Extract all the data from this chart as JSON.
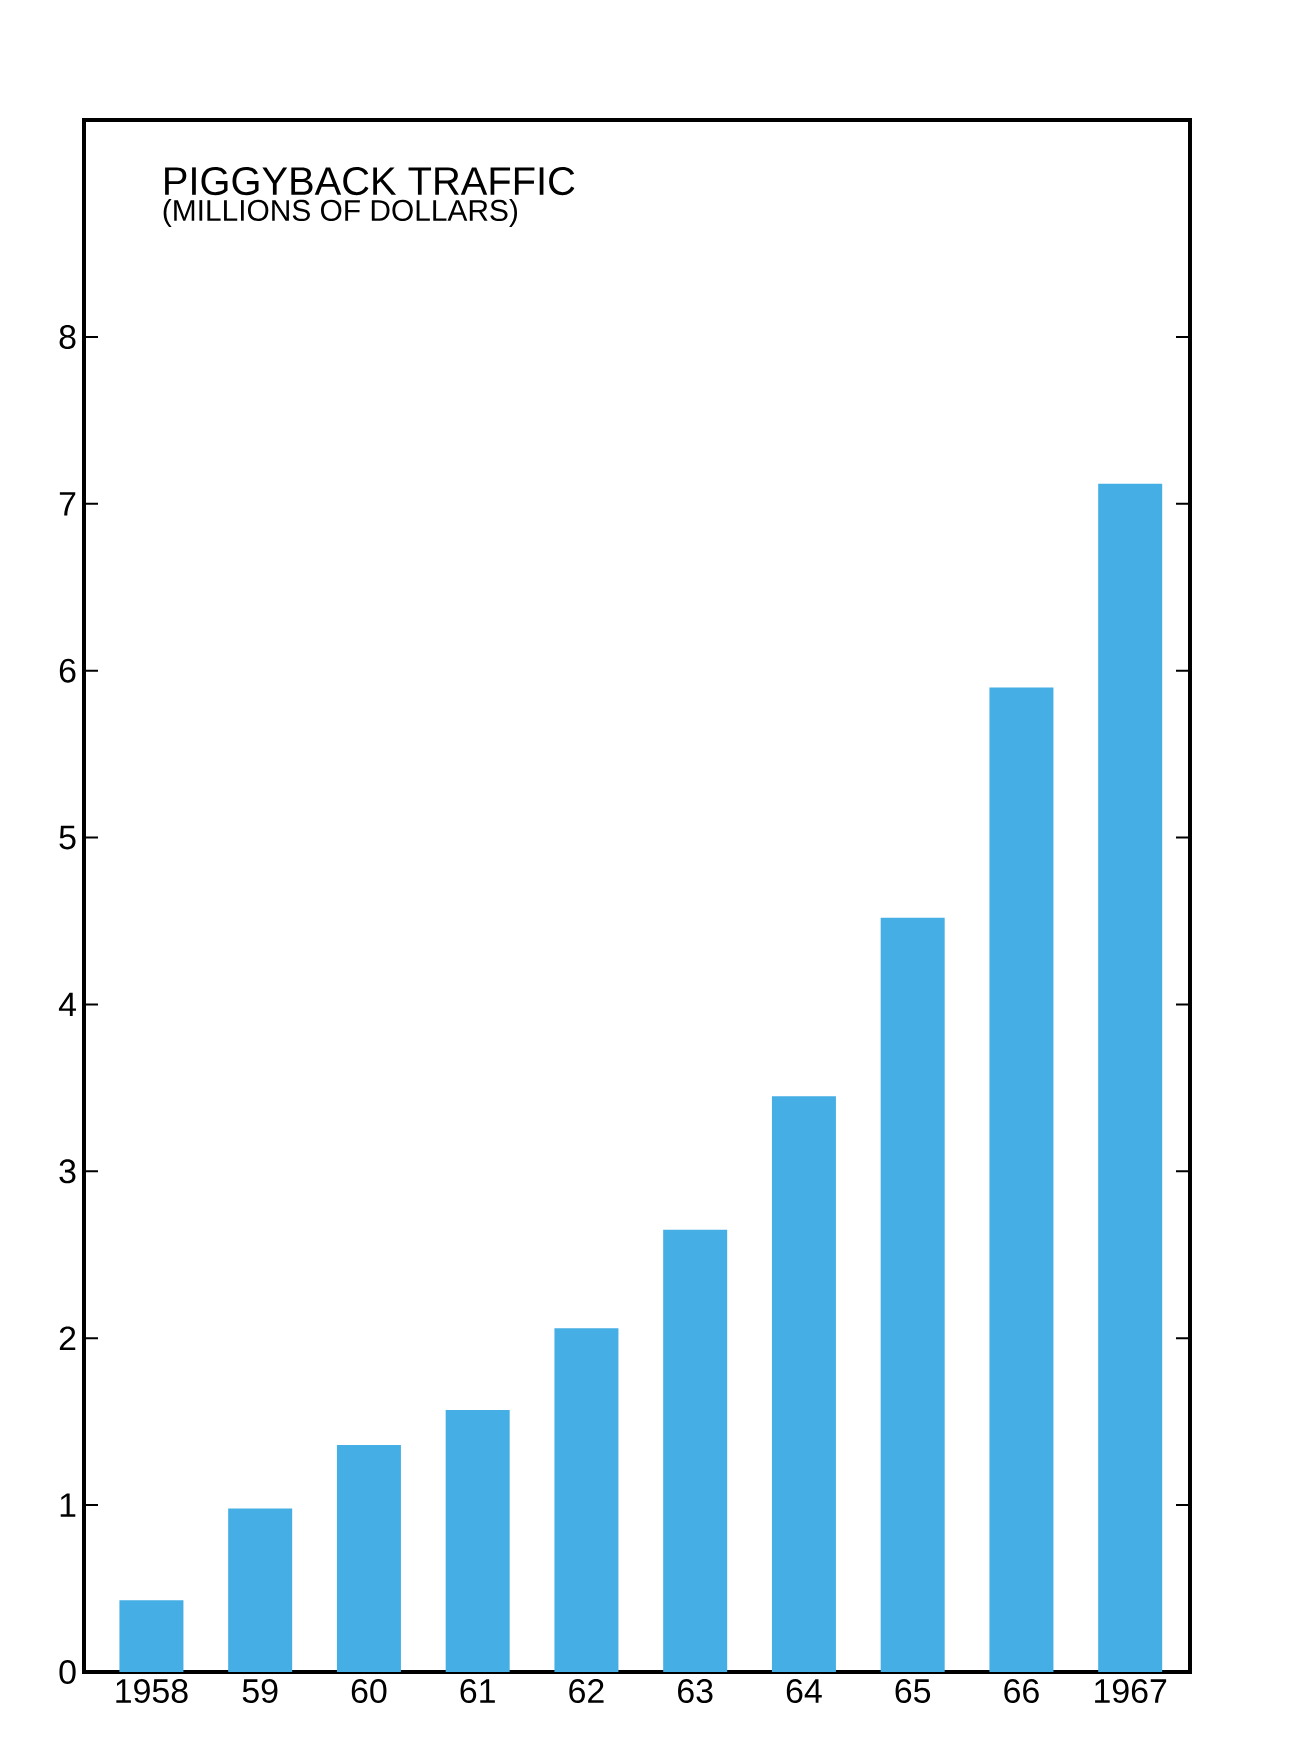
{
  "chart_data": {
    "type": "bar",
    "title": "PIGGYBACK  TRAFFIC",
    "subtitle": "(MILLIONS OF DOLLARS)",
    "categories": [
      "1958",
      "59",
      "60",
      "61",
      "62",
      "63",
      "64",
      "65",
      "66",
      "1967"
    ],
    "values": [
      0.43,
      0.98,
      1.36,
      1.57,
      2.06,
      2.65,
      3.45,
      4.52,
      5.9,
      7.12
    ],
    "color": "#45aee4",
    "ylim": [
      0,
      9.3
    ],
    "yticks": [
      0,
      1,
      2,
      3,
      4,
      5,
      6,
      7,
      8
    ]
  }
}
